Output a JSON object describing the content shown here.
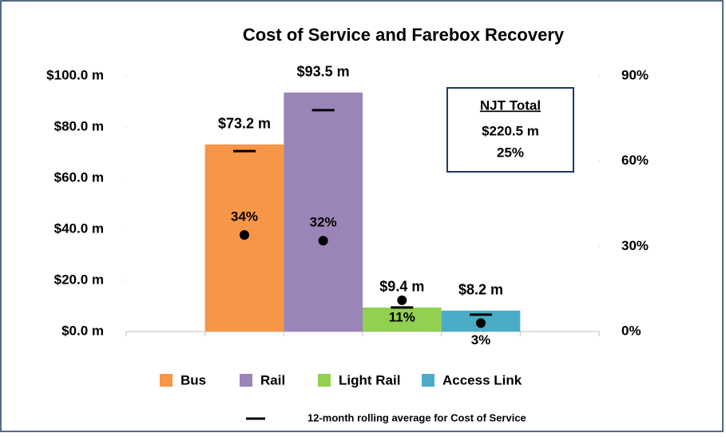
{
  "chart_data": {
    "type": "bar",
    "title": "Cost of Service and Farebox Recovery",
    "categories": [
      "Bus",
      "Rail",
      "Light Rail",
      "Access Link"
    ],
    "colors": [
      "#f79646",
      "#9b84b8",
      "#92d050",
      "#4bacc6"
    ],
    "series": [
      {
        "values": [
          73.2,
          93.5,
          9.4,
          8.2
        ],
        "value_labels": [
          "$73.2 m",
          "$93.5 m",
          "$9.4 m",
          "$8.2 m"
        ]
      },
      {
        "type": "scatter",
        "axis": "y2",
        "color": "#000000",
        "values": [
          34,
          32,
          11,
          3
        ],
        "value_labels": [
          "34%",
          "32%",
          "11%",
          "3%"
        ]
      },
      {
        "type": "dash",
        "name": "12-month rolling average for Cost of Service",
        "color": "#000000",
        "values": [
          70.6,
          86.6,
          9.4,
          6.6
        ]
      }
    ],
    "ylim": [
      0,
      100
    ],
    "yticks": [
      {
        "value": 0,
        "label": "$0.0 m"
      },
      {
        "value": 20,
        "label": "$20.0 m"
      },
      {
        "value": 40,
        "label": "$40.0 m"
      },
      {
        "value": 60,
        "label": "$60.0 m"
      },
      {
        "value": 80,
        "label": "$80.0 m"
      },
      {
        "value": 100,
        "label": "$100.0 m"
      }
    ],
    "y2lim": [
      0,
      90
    ],
    "y2ticks": [
      {
        "value": 0,
        "label": "0%"
      },
      {
        "value": 30,
        "label": "30%"
      },
      {
        "value": 60,
        "label": "60%"
      },
      {
        "value": 90,
        "label": "90%"
      }
    ],
    "annotation": {
      "title": "NJT Total",
      "lines": [
        "$220.5 m",
        "25%"
      ]
    }
  }
}
